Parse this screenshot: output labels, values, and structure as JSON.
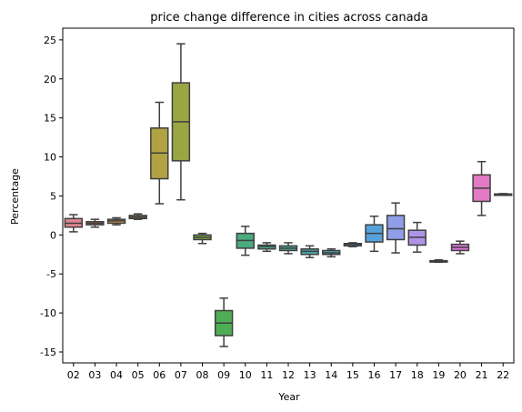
{
  "chart_data": {
    "type": "box",
    "title": "price change difference in cities across canada",
    "xlabel": "Year",
    "ylabel": "Percentage",
    "ylim": [
      -16.4,
      26.5
    ],
    "yticks": [
      -15,
      -10,
      -5,
      0,
      5,
      10,
      15,
      20,
      25
    ],
    "grid": false,
    "categories": [
      "02",
      "03",
      "04",
      "05",
      "06",
      "07",
      "08",
      "09",
      "10",
      "11",
      "12",
      "13",
      "14",
      "15",
      "16",
      "17",
      "18",
      "19",
      "20",
      "21",
      "22"
    ],
    "boxes": [
      {
        "year": "02",
        "min": 0.4,
        "q1": 1.0,
        "median": 1.5,
        "q3": 2.1,
        "max": 2.6,
        "color": "#e1848f"
      },
      {
        "year": "03",
        "min": 1.0,
        "q1": 1.3,
        "median": 1.5,
        "q3": 1.7,
        "max": 2.0,
        "color": "#e08a5c"
      },
      {
        "year": "04",
        "min": 1.3,
        "q1": 1.5,
        "median": 1.8,
        "q3": 2.0,
        "max": 2.2,
        "color": "#d19046"
      },
      {
        "year": "05",
        "min": 2.0,
        "q1": 2.1,
        "median": 2.3,
        "q3": 2.5,
        "max": 2.7,
        "color": "#bd9a44"
      },
      {
        "year": "06",
        "min": 4.0,
        "q1": 7.2,
        "median": 10.5,
        "q3": 13.7,
        "max": 17.0,
        "color": "#b1a244"
      },
      {
        "year": "07",
        "min": 4.5,
        "q1": 9.5,
        "median": 14.5,
        "q3": 19.5,
        "max": 24.5,
        "color": "#9aa543"
      },
      {
        "year": "08",
        "min": -1.1,
        "q1": -0.6,
        "median": -0.3,
        "q3": 0.0,
        "max": 0.2,
        "color": "#7bad44"
      },
      {
        "year": "09",
        "min": -14.3,
        "q1": -12.9,
        "median": -11.3,
        "q3": -9.7,
        "max": -8.1,
        "color": "#4fae53"
      },
      {
        "year": "10",
        "min": -2.6,
        "q1": -1.7,
        "median": -0.7,
        "q3": 0.2,
        "max": 1.1,
        "color": "#4aab7f"
      },
      {
        "year": "11",
        "min": -2.1,
        "q1": -1.8,
        "median": -1.5,
        "q3": -1.3,
        "max": -1.0,
        "color": "#4aaa93"
      },
      {
        "year": "12",
        "min": -2.4,
        "q1": -2.0,
        "median": -1.7,
        "q3": -1.4,
        "max": -1.0,
        "color": "#49a9a0"
      },
      {
        "year": "13",
        "min": -2.9,
        "q1": -2.5,
        "median": -2.1,
        "q3": -1.8,
        "max": -1.4,
        "color": "#4aa8ac"
      },
      {
        "year": "14",
        "min": -2.8,
        "q1": -2.5,
        "median": -2.3,
        "q3": -2.0,
        "max": -1.8,
        "color": "#4ba7b9"
      },
      {
        "year": "15",
        "min": -1.5,
        "q1": -1.4,
        "median": -1.2,
        "q3": -1.1,
        "max": -1.0,
        "color": "#4ea6c9"
      },
      {
        "year": "16",
        "min": -2.1,
        "q1": -0.9,
        "median": 0.2,
        "q3": 1.3,
        "max": 2.4,
        "color": "#55a1dc"
      },
      {
        "year": "17",
        "min": -2.3,
        "q1": -0.6,
        "median": 0.8,
        "q3": 2.5,
        "max": 4.1,
        "color": "#8e9fe8"
      },
      {
        "year": "18",
        "min": -2.2,
        "q1": -1.3,
        "median": -0.3,
        "q3": 0.6,
        "max": 1.6,
        "color": "#ae94e6"
      },
      {
        "year": "19",
        "min": -3.5,
        "q1": -3.4,
        "median": -3.35,
        "q3": -3.3,
        "max": -3.2,
        "color": "#c786e4"
      },
      {
        "year": "20",
        "min": -2.4,
        "q1": -2.0,
        "median": -1.6,
        "q3": -1.2,
        "max": -0.8,
        "color": "#d977d9"
      },
      {
        "year": "21",
        "min": 2.5,
        "q1": 4.3,
        "median": 6.0,
        "q3": 7.7,
        "max": 9.4,
        "color": "#e27ac4"
      },
      {
        "year": "22",
        "min": 5.1,
        "q1": 5.15,
        "median": 5.2,
        "q3": 5.25,
        "max": 5.3,
        "color": "#e07db0"
      }
    ]
  }
}
